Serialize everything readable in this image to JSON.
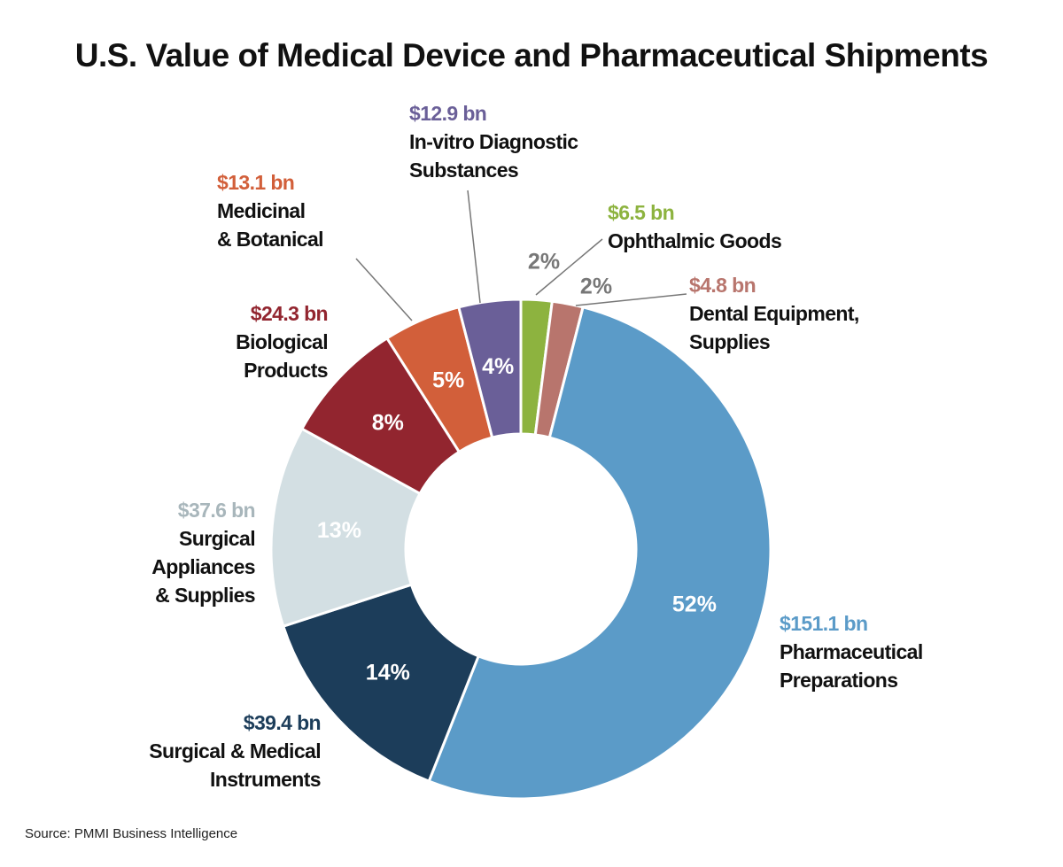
{
  "chart_data": {
    "type": "pie",
    "title": "U.S. Value of Medical Device and Pharmaceutical Shipments",
    "categories": [
      "Ophthalmic Goods",
      "Dental Equipment,\nSupplies",
      "Pharmaceutical\nPreparations",
      "Surgical & Medical\nInstruments",
      "Surgical\nAppliances\n& Supplies",
      "Biological\nProducts",
      "Medicinal\n& Botanical",
      "In-vitro Diagnostic\nSubstances"
    ],
    "values": [
      2,
      2,
      52,
      14,
      13,
      8,
      5,
      4
    ],
    "value_labels": [
      "2%",
      "2%",
      "52%",
      "14%",
      "13%",
      "8%",
      "5%",
      "4%"
    ],
    "amount_labels": [
      "$6.5 bn",
      "$4.8 bn",
      "$151.1 bn",
      "$39.4 bn",
      "$37.6 bn",
      "$24.3 bn",
      "$13.1 bn",
      "$12.9 bn"
    ],
    "colors": [
      "#8db33f",
      "#b8756d",
      "#5b9bc8",
      "#1c3d5a",
      "#d3dfe3",
      "#92252f",
      "#d25f3a",
      "#6a5f98"
    ],
    "amount_colors": [
      "#8db33f",
      "#b8756d",
      "#5b9bc8",
      "#1c3d5a",
      "#a8b6bb",
      "#92252f",
      "#d25f3a",
      "#6a5f98"
    ],
    "source": "Source: PMMI Business Intelligence"
  }
}
